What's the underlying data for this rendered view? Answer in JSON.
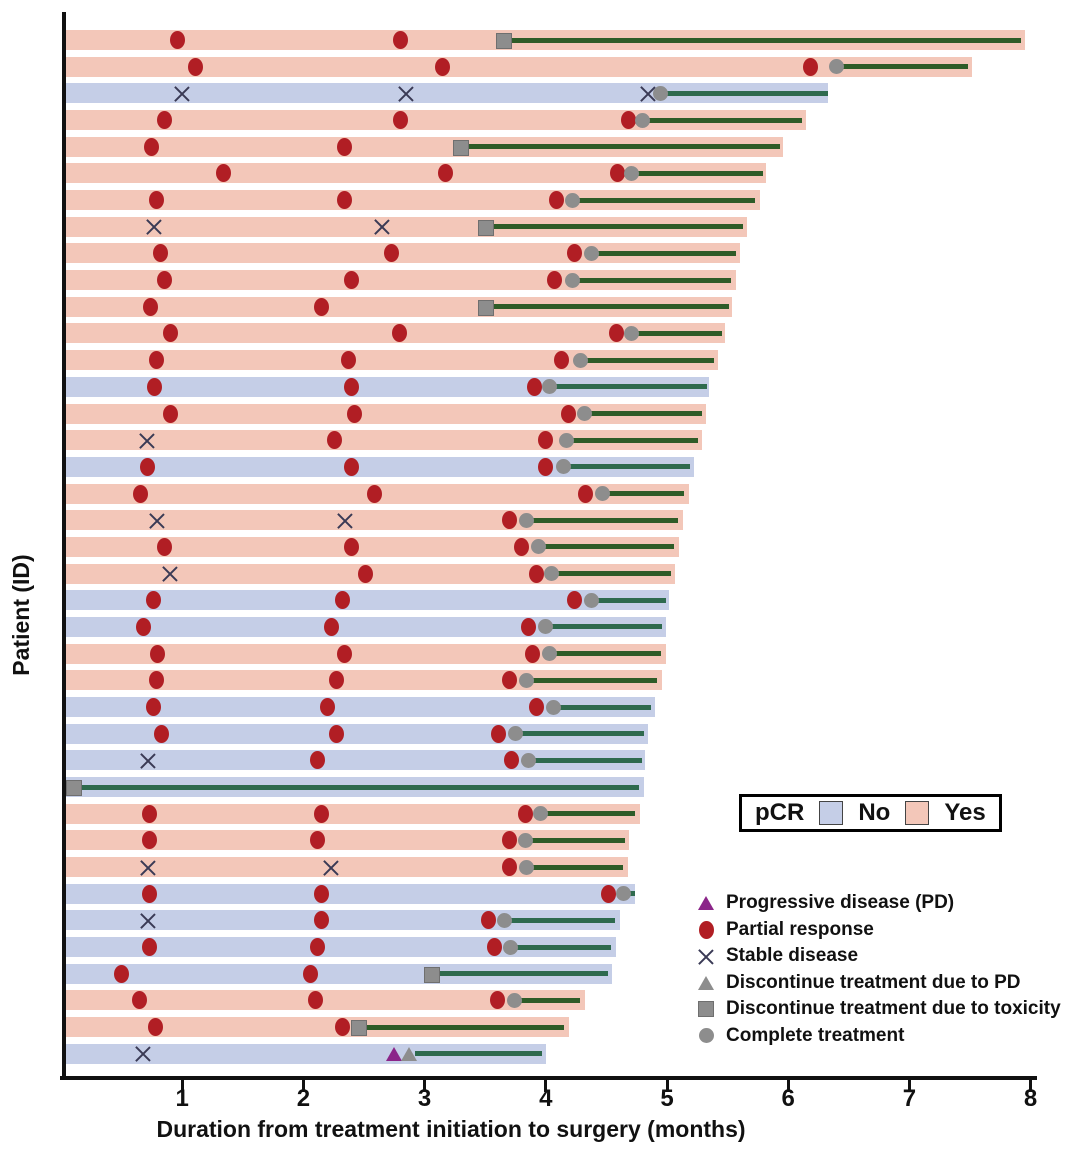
{
  "figure_title": "",
  "axes": {
    "x_title": "Duration from treatment initiation to surgery (months)",
    "y_title": "Patient (ID)"
  },
  "pcr_legend": {
    "title": "pCR",
    "no_label": "No",
    "yes_label": "Yes"
  },
  "colors": {
    "pcr_yes_bar": "#f3c7b9",
    "pcr_no_bar": "#c5cee7",
    "partial_response": "#b11e24",
    "progressive_disease": "#8b2589",
    "gray_marker": "#8d8d8d",
    "gray_marker_edge": "#6f6f6f",
    "stable_disease_x": "#3a3a55",
    "line_on_yes": "#2e5c28",
    "line_on_no": "#2e6a4e",
    "axis": "#111111"
  },
  "chart_data": {
    "type": "bar",
    "orientation": "horizontal",
    "title": "Swimmer plot: duration from treatment initiation to surgery",
    "xlabel": "Duration from treatment initiation to surgery (months)",
    "ylabel": "Patient (ID)",
    "xlim": [
      0,
      8
    ],
    "x_ticks": [
      1,
      2,
      3,
      4,
      5,
      6,
      7,
      8
    ],
    "grid": false,
    "legend_position": "lower right",
    "marker_legend": [
      {
        "type": "pd",
        "label": "Progressive disease (PD)"
      },
      {
        "type": "pr",
        "label": "Partial response"
      },
      {
        "type": "sd",
        "label": "Stable disease"
      },
      {
        "type": "disc_pd",
        "label": "Discontinue treatment due to PD"
      },
      {
        "type": "disc_tox",
        "label": "Discontinue treatment due to toxicity"
      },
      {
        "type": "complete",
        "label": "Complete treatment"
      }
    ],
    "marker_meaning": {
      "pr": "Partial response (red circle)",
      "sd": "Stable disease (X)",
      "pd": "Progressive disease (purple triangle)",
      "disc_pd": "Discontinue treatment due to PD (gray triangle)",
      "disc_tox": "Discontinue treatment due to toxicity (gray square)",
      "complete": "Complete treatment (gray circle)"
    },
    "patients": [
      {
        "pcr": "Yes",
        "duration": 7.95,
        "line": [
          3.7,
          7.92
        ],
        "markers": [
          {
            "type": "pr",
            "x": 0.96
          },
          {
            "type": "pr",
            "x": 2.8
          },
          {
            "type": "disc_tox",
            "x": 3.65
          }
        ]
      },
      {
        "pcr": "Yes",
        "duration": 7.52,
        "line": [
          6.42,
          7.48
        ],
        "markers": [
          {
            "type": "pr",
            "x": 1.11
          },
          {
            "type": "pr",
            "x": 3.15
          },
          {
            "type": "pr",
            "x": 6.18
          },
          {
            "type": "complete",
            "x": 6.4
          }
        ]
      },
      {
        "pcr": "No",
        "duration": 6.33,
        "line": [
          4.97,
          6.33
        ],
        "markers": [
          {
            "type": "sd",
            "x": 1.0
          },
          {
            "type": "sd",
            "x": 2.85
          },
          {
            "type": "sd",
            "x": 4.84
          },
          {
            "type": "complete",
            "x": 4.95
          }
        ]
      },
      {
        "pcr": "Yes",
        "duration": 6.15,
        "line": [
          4.82,
          6.11
        ],
        "markers": [
          {
            "type": "pr",
            "x": 0.85
          },
          {
            "type": "pr",
            "x": 2.8
          },
          {
            "type": "pr",
            "x": 4.68
          },
          {
            "type": "complete",
            "x": 4.8
          }
        ]
      },
      {
        "pcr": "Yes",
        "duration": 5.96,
        "line": [
          3.32,
          5.93
        ],
        "markers": [
          {
            "type": "pr",
            "x": 0.75
          },
          {
            "type": "pr",
            "x": 2.34
          },
          {
            "type": "disc_tox",
            "x": 3.29
          }
        ]
      },
      {
        "pcr": "Yes",
        "duration": 5.82,
        "line": [
          4.73,
          5.79
        ],
        "markers": [
          {
            "type": "pr",
            "x": 1.34
          },
          {
            "type": "pr",
            "x": 3.17
          },
          {
            "type": "pr",
            "x": 4.59
          },
          {
            "type": "complete",
            "x": 4.71
          }
        ]
      },
      {
        "pcr": "Yes",
        "duration": 5.77,
        "line": [
          4.24,
          5.73
        ],
        "markers": [
          {
            "type": "pr",
            "x": 0.79
          },
          {
            "type": "pr",
            "x": 2.34
          },
          {
            "type": "pr",
            "x": 4.09
          },
          {
            "type": "complete",
            "x": 4.22
          }
        ]
      },
      {
        "pcr": "Yes",
        "duration": 5.66,
        "line": [
          3.53,
          5.63
        ],
        "markers": [
          {
            "type": "sd",
            "x": 0.77
          },
          {
            "type": "sd",
            "x": 2.65
          },
          {
            "type": "disc_tox",
            "x": 3.5
          }
        ]
      },
      {
        "pcr": "Yes",
        "duration": 5.6,
        "line": [
          4.4,
          5.57
        ],
        "markers": [
          {
            "type": "pr",
            "x": 0.82
          },
          {
            "type": "pr",
            "x": 2.73
          },
          {
            "type": "pr",
            "x": 4.24
          },
          {
            "type": "complete",
            "x": 4.38
          }
        ]
      },
      {
        "pcr": "Yes",
        "duration": 5.57,
        "line": [
          4.24,
          5.53
        ],
        "markers": [
          {
            "type": "pr",
            "x": 0.85
          },
          {
            "type": "pr",
            "x": 2.4
          },
          {
            "type": "pr",
            "x": 4.07
          },
          {
            "type": "complete",
            "x": 4.22
          }
        ]
      },
      {
        "pcr": "Yes",
        "duration": 5.54,
        "line": [
          3.53,
          5.51
        ],
        "markers": [
          {
            "type": "pr",
            "x": 0.74
          },
          {
            "type": "pr",
            "x": 2.15
          },
          {
            "type": "disc_tox",
            "x": 3.5
          }
        ]
      },
      {
        "pcr": "Yes",
        "duration": 5.48,
        "line": [
          4.73,
          5.45
        ],
        "markers": [
          {
            "type": "pr",
            "x": 0.9
          },
          {
            "type": "pr",
            "x": 2.79
          },
          {
            "type": "pr",
            "x": 4.58
          },
          {
            "type": "complete",
            "x": 4.71
          }
        ]
      },
      {
        "pcr": "Yes",
        "duration": 5.42,
        "line": [
          4.31,
          5.39
        ],
        "markers": [
          {
            "type": "pr",
            "x": 0.79
          },
          {
            "type": "pr",
            "x": 2.37
          },
          {
            "type": "pr",
            "x": 4.13
          },
          {
            "type": "complete",
            "x": 4.29
          }
        ]
      },
      {
        "pcr": "No",
        "duration": 5.35,
        "line": [
          4.05,
          5.33
        ],
        "markers": [
          {
            "type": "pr",
            "x": 0.77
          },
          {
            "type": "pr",
            "x": 2.4
          },
          {
            "type": "pr",
            "x": 3.91
          },
          {
            "type": "complete",
            "x": 4.03
          }
        ]
      },
      {
        "pcr": "Yes",
        "duration": 5.32,
        "line": [
          4.34,
          5.29
        ],
        "markers": [
          {
            "type": "pr",
            "x": 0.9
          },
          {
            "type": "pr",
            "x": 2.42
          },
          {
            "type": "pr",
            "x": 4.19
          },
          {
            "type": "complete",
            "x": 4.32
          }
        ]
      },
      {
        "pcr": "Yes",
        "duration": 5.29,
        "line": [
          4.19,
          5.26
        ],
        "markers": [
          {
            "type": "sd",
            "x": 0.71
          },
          {
            "type": "pr",
            "x": 2.26
          },
          {
            "type": "pr",
            "x": 4.0
          },
          {
            "type": "complete",
            "x": 4.17
          }
        ]
      },
      {
        "pcr": "No",
        "duration": 5.22,
        "line": [
          4.17,
          5.19
        ],
        "markers": [
          {
            "type": "pr",
            "x": 0.71
          },
          {
            "type": "pr",
            "x": 2.4
          },
          {
            "type": "pr",
            "x": 4.0
          },
          {
            "type": "complete",
            "x": 4.15
          }
        ]
      },
      {
        "pcr": "Yes",
        "duration": 5.18,
        "line": [
          4.49,
          5.14
        ],
        "markers": [
          {
            "type": "pr",
            "x": 0.66
          },
          {
            "type": "pr",
            "x": 2.59
          },
          {
            "type": "pr",
            "x": 4.33
          },
          {
            "type": "complete",
            "x": 4.47
          }
        ]
      },
      {
        "pcr": "Yes",
        "duration": 5.13,
        "line": [
          3.86,
          5.09
        ],
        "markers": [
          {
            "type": "sd",
            "x": 0.79
          },
          {
            "type": "sd",
            "x": 2.34
          },
          {
            "type": "pr",
            "x": 3.7
          },
          {
            "type": "complete",
            "x": 3.84
          }
        ]
      },
      {
        "pcr": "Yes",
        "duration": 5.1,
        "line": [
          3.96,
          5.06
        ],
        "markers": [
          {
            "type": "pr",
            "x": 0.85
          },
          {
            "type": "pr",
            "x": 2.4
          },
          {
            "type": "pr",
            "x": 3.8
          },
          {
            "type": "complete",
            "x": 3.94
          }
        ]
      },
      {
        "pcr": "Yes",
        "duration": 5.07,
        "line": [
          4.07,
          5.03
        ],
        "markers": [
          {
            "type": "sd",
            "x": 0.9
          },
          {
            "type": "pr",
            "x": 2.51
          },
          {
            "type": "pr",
            "x": 3.92
          },
          {
            "type": "complete",
            "x": 4.05
          }
        ]
      },
      {
        "pcr": "No",
        "duration": 5.02,
        "line": [
          4.4,
          4.99
        ],
        "markers": [
          {
            "type": "pr",
            "x": 0.76
          },
          {
            "type": "pr",
            "x": 2.32
          },
          {
            "type": "pr",
            "x": 4.24
          },
          {
            "type": "complete",
            "x": 4.38
          }
        ]
      },
      {
        "pcr": "No",
        "duration": 4.99,
        "line": [
          4.02,
          4.96
        ],
        "markers": [
          {
            "type": "pr",
            "x": 0.68
          },
          {
            "type": "pr",
            "x": 2.23
          },
          {
            "type": "pr",
            "x": 3.86
          },
          {
            "type": "complete",
            "x": 4.0
          }
        ]
      },
      {
        "pcr": "Yes",
        "duration": 4.99,
        "line": [
          4.05,
          4.95
        ],
        "markers": [
          {
            "type": "pr",
            "x": 0.8
          },
          {
            "type": "pr",
            "x": 2.34
          },
          {
            "type": "pr",
            "x": 3.89
          },
          {
            "type": "complete",
            "x": 4.03
          }
        ]
      },
      {
        "pcr": "Yes",
        "duration": 4.96,
        "line": [
          3.86,
          4.92
        ],
        "markers": [
          {
            "type": "pr",
            "x": 0.79
          },
          {
            "type": "pr",
            "x": 2.27
          },
          {
            "type": "pr",
            "x": 3.7
          },
          {
            "type": "complete",
            "x": 3.84
          }
        ]
      },
      {
        "pcr": "No",
        "duration": 4.9,
        "line": [
          4.08,
          4.87
        ],
        "markers": [
          {
            "type": "pr",
            "x": 0.76
          },
          {
            "type": "pr",
            "x": 2.2
          },
          {
            "type": "pr",
            "x": 3.92
          },
          {
            "type": "complete",
            "x": 4.06
          }
        ]
      },
      {
        "pcr": "No",
        "duration": 4.84,
        "line": [
          3.77,
          4.81
        ],
        "markers": [
          {
            "type": "pr",
            "x": 0.83
          },
          {
            "type": "pr",
            "x": 2.27
          },
          {
            "type": "pr",
            "x": 3.61
          },
          {
            "type": "complete",
            "x": 3.75
          }
        ]
      },
      {
        "pcr": "No",
        "duration": 4.82,
        "line": [
          3.88,
          4.79
        ],
        "markers": [
          {
            "type": "sd",
            "x": 0.72
          },
          {
            "type": "pr",
            "x": 2.12
          },
          {
            "type": "pr",
            "x": 3.72
          },
          {
            "type": "complete",
            "x": 3.86
          }
        ]
      },
      {
        "pcr": "No",
        "duration": 4.81,
        "line": [
          0.14,
          4.77
        ],
        "markers": [
          {
            "type": "disc_tox",
            "x": 0.1
          }
        ]
      },
      {
        "pcr": "Yes",
        "duration": 4.78,
        "line": [
          3.98,
          4.74
        ],
        "markers": [
          {
            "type": "pr",
            "x": 0.73
          },
          {
            "type": "pr",
            "x": 2.15
          },
          {
            "type": "pr",
            "x": 3.83
          },
          {
            "type": "complete",
            "x": 3.96
          }
        ]
      },
      {
        "pcr": "Yes",
        "duration": 4.69,
        "line": [
          3.85,
          4.65
        ],
        "markers": [
          {
            "type": "pr",
            "x": 0.73
          },
          {
            "type": "pr",
            "x": 2.12
          },
          {
            "type": "pr",
            "x": 3.7
          },
          {
            "type": "complete",
            "x": 3.83
          }
        ]
      },
      {
        "pcr": "Yes",
        "duration": 4.68,
        "line": [
          3.86,
          4.64
        ],
        "markers": [
          {
            "type": "sd",
            "x": 0.72
          },
          {
            "type": "sd",
            "x": 2.23
          },
          {
            "type": "pr",
            "x": 3.7
          },
          {
            "type": "complete",
            "x": 3.84
          }
        ]
      },
      {
        "pcr": "No",
        "duration": 4.74,
        "line": [
          4.66,
          4.74
        ],
        "markers": [
          {
            "type": "pr",
            "x": 0.73
          },
          {
            "type": "pr",
            "x": 2.15
          },
          {
            "type": "pr",
            "x": 4.52
          },
          {
            "type": "complete",
            "x": 4.64
          }
        ]
      },
      {
        "pcr": "No",
        "duration": 4.61,
        "line": [
          3.68,
          4.57
        ],
        "markers": [
          {
            "type": "sd",
            "x": 0.72
          },
          {
            "type": "pr",
            "x": 2.15
          },
          {
            "type": "pr",
            "x": 3.53
          },
          {
            "type": "complete",
            "x": 3.66
          }
        ]
      },
      {
        "pcr": "No",
        "duration": 4.58,
        "line": [
          3.73,
          4.54
        ],
        "markers": [
          {
            "type": "pr",
            "x": 0.73
          },
          {
            "type": "pr",
            "x": 2.12
          },
          {
            "type": "pr",
            "x": 3.58
          },
          {
            "type": "complete",
            "x": 3.71
          }
        ]
      },
      {
        "pcr": "No",
        "duration": 4.55,
        "line": [
          3.08,
          4.51
        ],
        "markers": [
          {
            "type": "pr",
            "x": 0.5
          },
          {
            "type": "pr",
            "x": 2.06
          },
          {
            "type": "disc_tox",
            "x": 3.05
          }
        ]
      },
      {
        "pcr": "Yes",
        "duration": 4.32,
        "line": [
          3.76,
          4.28
        ],
        "markers": [
          {
            "type": "pr",
            "x": 0.65
          },
          {
            "type": "pr",
            "x": 2.1
          },
          {
            "type": "pr",
            "x": 3.6
          },
          {
            "type": "complete",
            "x": 3.74
          }
        ]
      },
      {
        "pcr": "Yes",
        "duration": 4.19,
        "line": [
          2.47,
          4.15
        ],
        "markers": [
          {
            "type": "pr",
            "x": 0.78
          },
          {
            "type": "pr",
            "x": 2.32
          },
          {
            "type": "disc_tox",
            "x": 2.45
          }
        ]
      },
      {
        "pcr": "No",
        "duration": 4.0,
        "line": [
          2.92,
          3.97
        ],
        "markers": [
          {
            "type": "sd",
            "x": 0.68
          },
          {
            "type": "pd",
            "x": 2.75
          },
          {
            "type": "disc_pd",
            "x": 2.87
          }
        ]
      }
    ]
  }
}
